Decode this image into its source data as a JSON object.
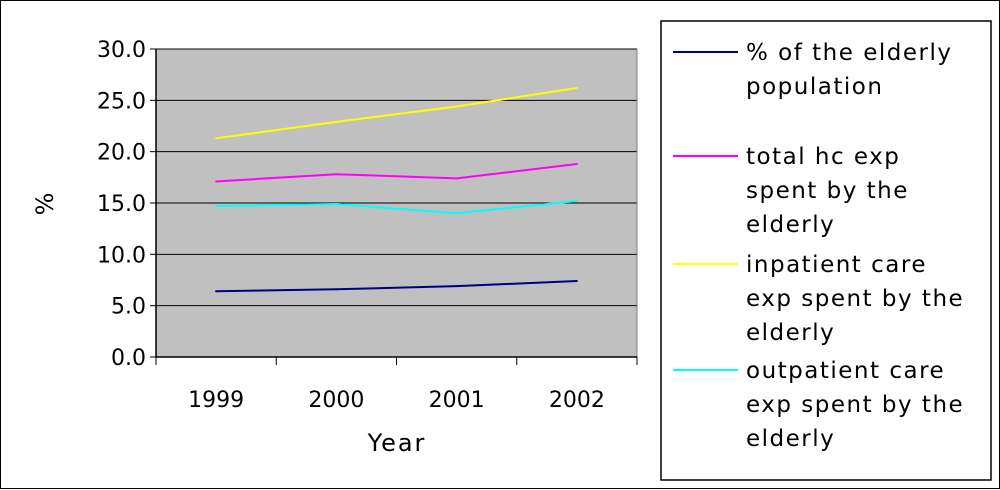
{
  "chart_data": {
    "type": "line",
    "title": "",
    "xlabel": "Year",
    "ylabel": "%",
    "categories": [
      "1999",
      "2000",
      "2001",
      "2002"
    ],
    "ylim": [
      0,
      30
    ],
    "yticks": [
      "0.0",
      "5.0",
      "10.0",
      "15.0",
      "20.0",
      "25.0",
      "30.0"
    ],
    "grid": true,
    "legend_position": "right",
    "plot_background": "#c0c0c0",
    "series": [
      {
        "name": "% of the elderly population",
        "legend_lines": [
          "% of the elderly",
          "population"
        ],
        "color": "#000080",
        "values": [
          6.4,
          6.6,
          6.9,
          7.4
        ]
      },
      {
        "name": "total hc exp spent by the elderly",
        "legend_lines": [
          "total hc exp",
          "spent by the",
          "elderly"
        ],
        "color": "#ff00ff",
        "values": [
          17.1,
          17.8,
          17.4,
          18.8
        ]
      },
      {
        "name": "inpatient care exp spent by the elderly",
        "legend_lines": [
          "inpatient care",
          "exp spent by the",
          "elderly"
        ],
        "color": "#ffff00",
        "values": [
          21.3,
          22.9,
          24.4,
          26.2
        ]
      },
      {
        "name": "outpatient care exp spent by the elderly",
        "legend_lines": [
          "outpatient care",
          "exp spent by the",
          "elderly"
        ],
        "color": "#00ffff",
        "values": [
          14.7,
          14.9,
          14.0,
          15.2
        ]
      }
    ]
  }
}
